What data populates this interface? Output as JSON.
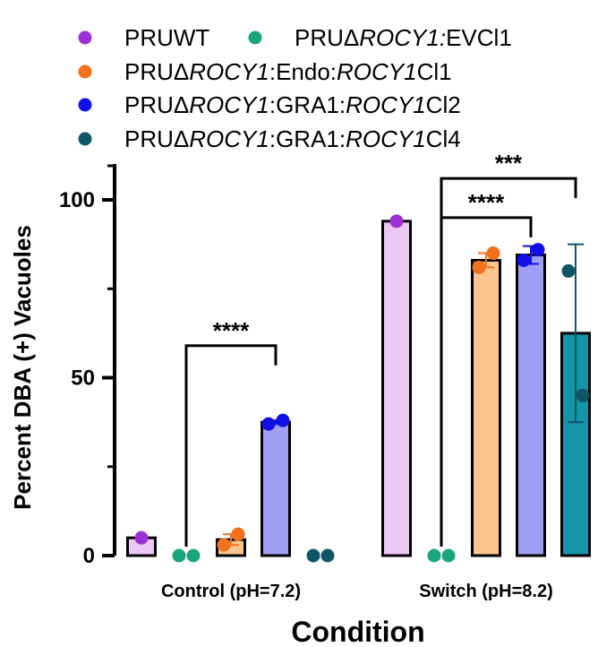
{
  "chart_data": {
    "type": "bar",
    "title": "",
    "xlabel": "Condition",
    "ylabel": "Percent DBA (+) Vacuoles",
    "ylim": [
      0,
      110
    ],
    "yticks": [
      "0",
      "50",
      "100"
    ],
    "categories": [
      "Control (pH=7.2)",
      "Switch (pH=8.2)"
    ],
    "series": [
      {
        "name": "PRUWT",
        "legend_parts": [
          {
            "t": "PRUWT",
            "i": false
          }
        ],
        "color": "#9c2fd6",
        "bar_fill": "#ebc8f2",
        "values": [
          5,
          94
        ],
        "errors": [
          0,
          0
        ],
        "points": [
          [
            5
          ],
          [
            94
          ]
        ]
      },
      {
        "name": "PRUΔROCY1:EVCl1",
        "legend_parts": [
          {
            "t": "PRUΔ",
            "i": false
          },
          {
            "t": "ROCY1:",
            "i": true
          },
          {
            "t": "EVCl1",
            "i": false
          }
        ],
        "color": "#1aa67a",
        "bar_fill": "#c9ecdf",
        "values": [
          0,
          0
        ],
        "errors": [
          0,
          0
        ],
        "points": [
          [
            0,
            0
          ],
          [
            0,
            0
          ]
        ]
      },
      {
        "name": "PRUΔROCY1:Endo:ROCY1Cl1",
        "legend_parts": [
          {
            "t": "PRUΔ",
            "i": false
          },
          {
            "t": "ROCY1",
            "i": true
          },
          {
            "t": ":Endo:",
            "i": false
          },
          {
            "t": "ROCY1",
            "i": true
          },
          {
            "t": "Cl1",
            "i": false
          }
        ],
        "color": "#f2711c",
        "bar_fill": "#fbc58f",
        "values": [
          4.5,
          83
        ],
        "errors": [
          1.5,
          2
        ],
        "points": [
          [
            3,
            6
          ],
          [
            81,
            85
          ]
        ]
      },
      {
        "name": "PRUΔROCY1:GRA1:ROCY1Cl2",
        "legend_parts": [
          {
            "t": "PRUΔ",
            "i": false
          },
          {
            "t": "ROCY1",
            "i": true
          },
          {
            "t": ":GRA1:",
            "i": false
          },
          {
            "t": "ROCY1",
            "i": true
          },
          {
            "t": "Cl2",
            "i": false
          }
        ],
        "color": "#1010e6",
        "bar_fill": "#9e9ef5",
        "values": [
          37.5,
          84.5
        ],
        "errors": [
          0.5,
          2.5
        ],
        "points": [
          [
            37,
            38
          ],
          [
            83,
            86
          ]
        ]
      },
      {
        "name": "PRUΔROCY1:GRA1:ROCY1Cl4",
        "legend_parts": [
          {
            "t": "PRUΔ",
            "i": false
          },
          {
            "t": "ROCY1",
            "i": true
          },
          {
            "t": ":GRA1:",
            "i": false
          },
          {
            "t": "ROCY1",
            "i": true
          },
          {
            "t": "Cl4",
            "i": false
          }
        ],
        "color": "#0f5566",
        "bar_fill": "#1595a8",
        "values": [
          0,
          62.5
        ],
        "errors": [
          0,
          25
        ],
        "points": [
          [
            0,
            0
          ],
          [
            80,
            45
          ]
        ]
      }
    ],
    "significance": [
      {
        "label": "****",
        "category": 0,
        "from_series": 1,
        "to_series": 3,
        "y": 59
      },
      {
        "label": "****",
        "category": 1,
        "from_series": 1,
        "to_series": 3,
        "y": 95
      },
      {
        "label": "***",
        "category": 1,
        "from_series": 1,
        "to_series": 4,
        "y": 106
      }
    ]
  }
}
